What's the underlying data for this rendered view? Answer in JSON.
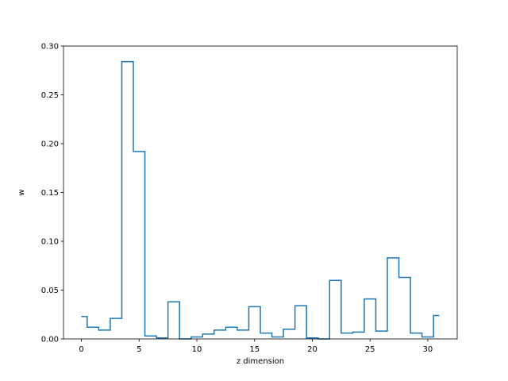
{
  "chart_data": {
    "type": "line",
    "style": "step",
    "title": "",
    "xlabel": "z dimension",
    "ylabel": "w",
    "xlim": [
      -1.55,
      32.55
    ],
    "ylim": [
      0,
      0.3
    ],
    "grid": false,
    "legend": "none",
    "x_ticks": [
      0,
      5,
      10,
      15,
      20,
      25,
      30
    ],
    "x_tick_labels": [
      "0",
      "5",
      "10",
      "15",
      "20",
      "25",
      "30"
    ],
    "y_ticks": [
      0.0,
      0.05,
      0.1,
      0.15,
      0.2,
      0.25,
      0.3
    ],
    "y_tick_labels": [
      "0.00",
      "0.05",
      "0.10",
      "0.15",
      "0.20",
      "0.25",
      "0.30"
    ],
    "series": [
      {
        "color": "#1f77b4",
        "x": [
          0,
          1,
          2,
          3,
          4,
          5,
          6,
          7,
          8,
          9,
          10,
          11,
          12,
          13,
          14,
          15,
          16,
          17,
          18,
          19,
          20,
          21,
          22,
          23,
          24,
          25,
          26,
          27,
          28,
          29,
          30,
          31
        ],
        "values": [
          0.023,
          0.012,
          0.009,
          0.021,
          0.284,
          0.192,
          0.003,
          0.001,
          0.038,
          0.0,
          0.002,
          0.005,
          0.009,
          0.012,
          0.009,
          0.033,
          0.006,
          0.002,
          0.01,
          0.034,
          0.001,
          0.0,
          0.06,
          0.006,
          0.007,
          0.041,
          0.008,
          0.083,
          0.063,
          0.006,
          0.002,
          0.024
        ]
      }
    ]
  }
}
